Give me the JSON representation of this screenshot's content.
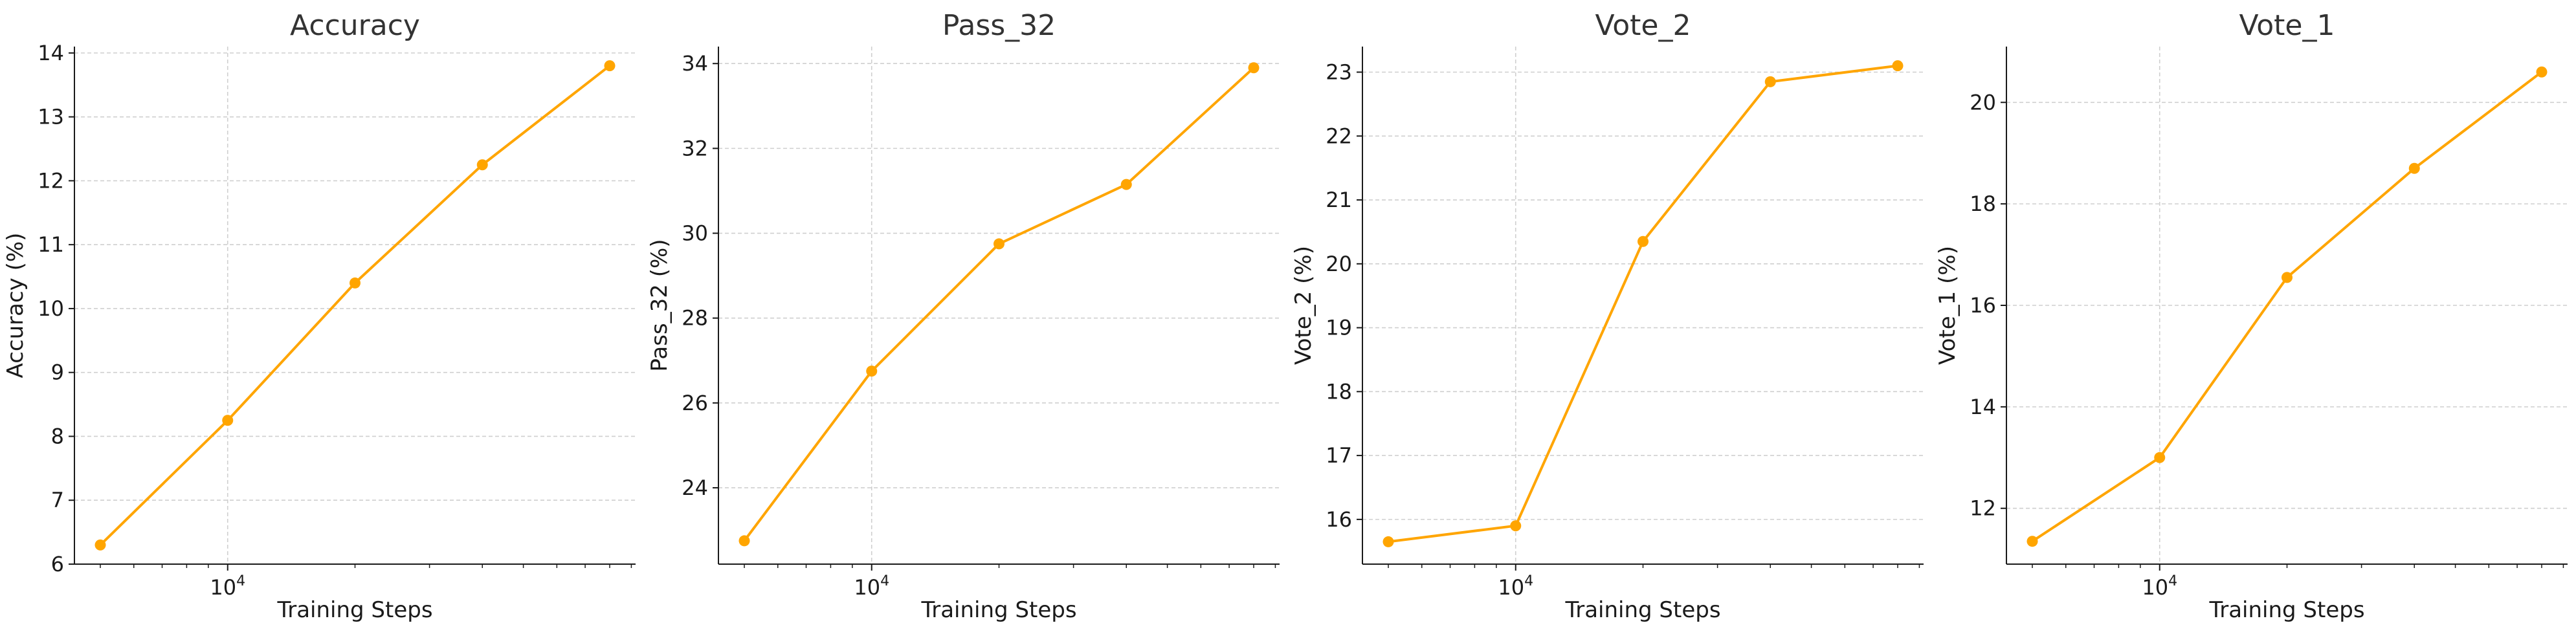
{
  "x_axis_label": "Training Steps",
  "line_color": "#FFA500",
  "chart_data": [
    {
      "type": "line",
      "title": "Accuracy",
      "xlabel": "Training Steps",
      "ylabel": "Accuracy (%)",
      "xscale": "log",
      "x": [
        5000,
        10000,
        20000,
        40000,
        80000
      ],
      "x_ticks": [
        {
          "base": "10",
          "exp": "4",
          "value": 10000
        }
      ],
      "y": [
        6.3,
        8.25,
        10.4,
        12.25,
        13.8
      ],
      "ylim": [
        6.0,
        14.1
      ],
      "y_ticks": [
        6,
        7,
        8,
        9,
        10,
        11,
        12,
        13,
        14
      ],
      "grid": true,
      "marker": "circle"
    },
    {
      "type": "line",
      "title": "Pass_32",
      "xlabel": "Training Steps",
      "ylabel": "Pass_32 (%)",
      "xscale": "log",
      "x": [
        5000,
        10000,
        20000,
        40000,
        80000
      ],
      "x_ticks": [
        {
          "base": "10",
          "exp": "4",
          "value": 10000
        }
      ],
      "y": [
        22.75,
        26.75,
        29.75,
        31.15,
        33.9
      ],
      "ylim": [
        22.2,
        34.4
      ],
      "y_ticks": [
        24,
        26,
        28,
        30,
        32,
        34
      ],
      "grid": true,
      "marker": "circle"
    },
    {
      "type": "line",
      "title": "Vote_2",
      "xlabel": "Training Steps",
      "ylabel": "Vote_2 (%)",
      "xscale": "log",
      "x": [
        5000,
        10000,
        20000,
        40000,
        80000
      ],
      "x_ticks": [
        {
          "base": "10",
          "exp": "4",
          "value": 10000
        }
      ],
      "y": [
        15.65,
        15.9,
        20.35,
        22.85,
        23.1
      ],
      "ylim": [
        15.3,
        23.4
      ],
      "y_ticks": [
        16,
        17,
        18,
        19,
        20,
        21,
        22,
        23
      ],
      "grid": true,
      "marker": "circle"
    },
    {
      "type": "line",
      "title": "Vote_1",
      "xlabel": "Training Steps",
      "ylabel": "Vote_1 (%)",
      "xscale": "log",
      "x": [
        5000,
        10000,
        20000,
        40000,
        80000
      ],
      "x_ticks": [
        {
          "base": "10",
          "exp": "4",
          "value": 10000
        }
      ],
      "y": [
        11.35,
        13.0,
        16.55,
        18.7,
        20.6
      ],
      "ylim": [
        10.9,
        21.1
      ],
      "y_ticks": [
        12,
        14,
        16,
        18,
        20
      ],
      "grid": true,
      "marker": "circle"
    }
  ]
}
